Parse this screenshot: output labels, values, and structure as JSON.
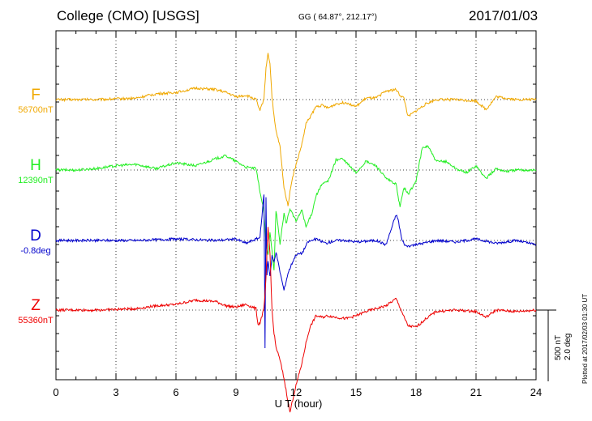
{
  "header": {
    "station": "College (CMO)  [USGS]",
    "coords": "GG ( 64.87°, 212.17°)",
    "date": "2017/01/03"
  },
  "chart_data": {
    "type": "line",
    "xlabel": "U T (hour)",
    "xlim": [
      0,
      24
    ],
    "xticks": [
      "0",
      "3",
      "6",
      "9",
      "12",
      "15",
      "18",
      "21",
      "24"
    ],
    "scale": {
      "nt": "500 nT",
      "deg": "2.0 deg"
    },
    "plotted": "Plotted at 2017/02/03 01:30 UT",
    "grid": true,
    "series": [
      {
        "name": "F",
        "baseline": "56700nT",
        "color": "#f0a800",
        "x": [
          0,
          2,
          4,
          5,
          6,
          7,
          8,
          8.5,
          9,
          9.5,
          10,
          10.2,
          10.4,
          10.5,
          10.6,
          10.7,
          10.8,
          10.9,
          11,
          11.2,
          11.4,
          11.6,
          11.7,
          11.8,
          12,
          12.3,
          12.5,
          12.8,
          13,
          13.3,
          13.6,
          14,
          14.5,
          15,
          15.5,
          16,
          16.5,
          17,
          17.2,
          17.4,
          17.6,
          18,
          18.5,
          19,
          20,
          21,
          21.5,
          22,
          23,
          24
        ],
        "y": [
          0,
          0,
          10,
          40,
          50,
          80,
          70,
          50,
          20,
          30,
          0,
          -80,
          10,
          220,
          330,
          250,
          20,
          -120,
          -220,
          -330,
          -620,
          -740,
          -650,
          -560,
          -460,
          -310,
          -170,
          -100,
          -50,
          -40,
          -60,
          -30,
          -20,
          -50,
          10,
          10,
          60,
          70,
          30,
          10,
          -120,
          -80,
          -30,
          0,
          0,
          -10,
          -70,
          20,
          0,
          0
        ]
      },
      {
        "name": "H",
        "baseline": "12390nT",
        "color": "#22ee22",
        "x": [
          0,
          1,
          2,
          3,
          4,
          5,
          6,
          7,
          8,
          8.5,
          9,
          9.5,
          10,
          10.2,
          10.4,
          10.5,
          10.6,
          10.7,
          10.8,
          10.9,
          11,
          11.2,
          11.4,
          11.5,
          11.7,
          12,
          12.3,
          12.5,
          12.8,
          13,
          13.3,
          13.6,
          14,
          14.3,
          14.6,
          15,
          15.5,
          16,
          16.5,
          17,
          17.2,
          17.4,
          17.6,
          18,
          18.3,
          18.6,
          19,
          19.5,
          20,
          20.5,
          21,
          21.5,
          22,
          22.5,
          23,
          24
        ],
        "y": [
          0,
          0,
          10,
          30,
          40,
          10,
          50,
          30,
          80,
          100,
          60,
          20,
          10,
          -150,
          -300,
          -530,
          -600,
          -440,
          -560,
          -700,
          -280,
          -520,
          -300,
          -380,
          -270,
          -360,
          -280,
          -400,
          -300,
          -180,
          -100,
          -80,
          70,
          80,
          40,
          -20,
          60,
          30,
          -60,
          -100,
          -260,
          -120,
          -170,
          -80,
          150,
          170,
          60,
          60,
          10,
          -20,
          30,
          -60,
          10,
          -10,
          0,
          0
        ]
      },
      {
        "name": "D",
        "baseline": "-0.8deg",
        "color": "#0000cc",
        "x": [
          0,
          2,
          4,
          6,
          8,
          9,
          9.5,
          10,
          10.2,
          10.4,
          10.45,
          10.5,
          10.55,
          10.6,
          10.7,
          10.8,
          10.9,
          11,
          11.2,
          11.4,
          11.6,
          11.8,
          12,
          12.3,
          12.6,
          13,
          13.5,
          14,
          14.5,
          15,
          16,
          16.5,
          17,
          17.1,
          17.3,
          17.5,
          18,
          19,
          20,
          21,
          22,
          23,
          24
        ],
        "y": [
          0,
          0,
          0,
          10,
          0,
          10,
          -20,
          10,
          20,
          330,
          -760,
          300,
          -240,
          -140,
          -250,
          -110,
          -150,
          -80,
          -220,
          -350,
          -230,
          -160,
          -100,
          -90,
          -10,
          10,
          -20,
          0,
          0,
          -10,
          0,
          -30,
          180,
          150,
          0,
          -40,
          -30,
          0,
          -10,
          10,
          -20,
          0,
          -30
        ]
      },
      {
        "name": "Z",
        "baseline": "55360nT",
        "color": "#ee0000",
        "x": [
          0,
          2,
          4,
          5,
          6,
          7,
          8,
          8.5,
          9,
          9.5,
          10,
          10.1,
          10.2,
          10.4,
          10.5,
          10.6,
          10.7,
          10.8,
          10.9,
          11,
          11.2,
          11.4,
          11.6,
          11.7,
          11.8,
          12,
          12.3,
          12.5,
          12.7,
          13,
          13.3,
          13.6,
          14,
          14.5,
          15,
          15.5,
          16,
          16.5,
          17,
          17.2,
          17.4,
          17.6,
          18,
          18.5,
          19,
          20,
          21,
          21.5,
          22,
          23,
          24
        ],
        "y": [
          0,
          0,
          10,
          30,
          40,
          70,
          60,
          30,
          20,
          40,
          10,
          -100,
          -90,
          10,
          220,
          580,
          400,
          0,
          -160,
          -260,
          -350,
          -480,
          -640,
          -720,
          -650,
          -530,
          -370,
          -230,
          -120,
          -40,
          -50,
          -40,
          -50,
          -60,
          -40,
          -10,
          10,
          30,
          80,
          20,
          -50,
          -110,
          -120,
          -60,
          -10,
          0,
          -10,
          -50,
          0,
          -10,
          0
        ]
      }
    ]
  }
}
